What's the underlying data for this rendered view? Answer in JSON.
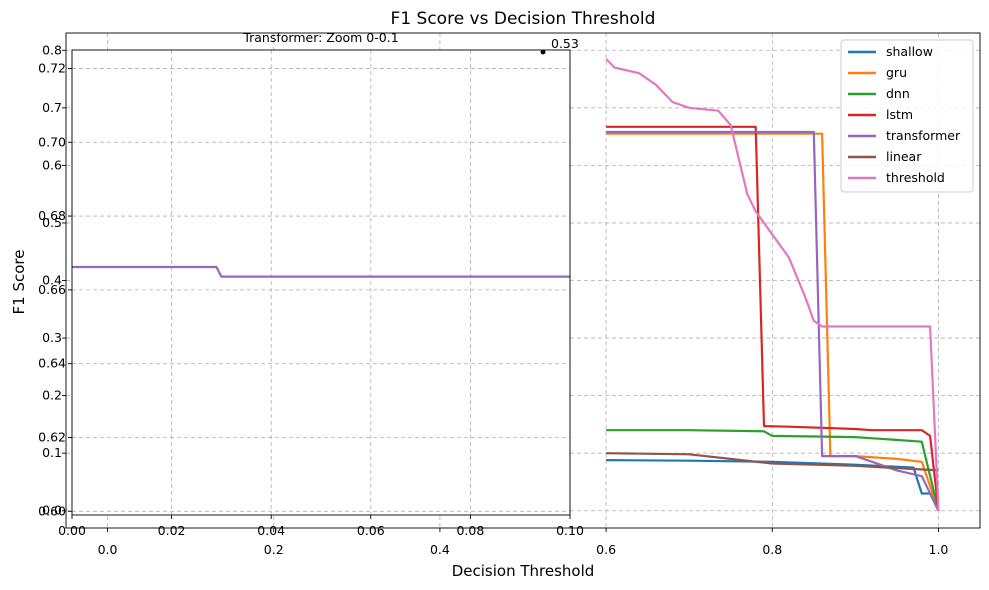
{
  "chart_data": [
    {
      "type": "line",
      "title": "F1 Score vs Decision Threshold",
      "xlabel": "Decision Threshold",
      "ylabel": "F1 Score",
      "xlim": [
        -0.05,
        1.05
      ],
      "ylim": [
        -0.03,
        0.83
      ],
      "xticks": [
        0.0,
        0.2,
        0.4,
        0.6,
        0.8,
        1.0
      ],
      "xtick_labels": [
        "0.0",
        "0.2",
        "0.4",
        "0.6",
        "0.8",
        "1.0"
      ],
      "yticks": [
        0.0,
        0.1,
        0.2,
        0.3,
        0.4,
        0.5,
        0.6,
        0.7,
        0.8
      ],
      "ytick_labels": [
        "0.0",
        "0.1",
        "0.2",
        "0.3",
        "0.4",
        "0.5",
        "0.6",
        "0.7",
        "0.8"
      ],
      "grid": true,
      "legend_position": "upper-right",
      "series": [
        {
          "name": "shallow",
          "color": "#1f77b4",
          "points": [
            [
              0.6,
              0.088
            ],
            [
              0.7,
              0.087
            ],
            [
              0.8,
              0.085
            ],
            [
              0.9,
              0.08
            ],
            [
              0.97,
              0.075
            ],
            [
              0.98,
              0.03
            ],
            [
              0.99,
              0.03
            ],
            [
              1.0,
              0.0
            ]
          ]
        },
        {
          "name": "gru",
          "color": "#ff7f0e",
          "points": [
            [
              0.6,
              0.655
            ],
            [
              0.7,
              0.655
            ],
            [
              0.8,
              0.655
            ],
            [
              0.86,
              0.655
            ],
            [
              0.87,
              0.095
            ],
            [
              0.9,
              0.095
            ],
            [
              0.95,
              0.09
            ],
            [
              0.98,
              0.085
            ],
            [
              1.0,
              0.0
            ]
          ]
        },
        {
          "name": "dnn",
          "color": "#2ca02c",
          "points": [
            [
              0.6,
              0.14
            ],
            [
              0.7,
              0.14
            ],
            [
              0.79,
              0.138
            ],
            [
              0.8,
              0.13
            ],
            [
              0.9,
              0.128
            ],
            [
              0.93,
              0.125
            ],
            [
              0.98,
              0.12
            ],
            [
              1.0,
              0.0
            ]
          ]
        },
        {
          "name": "lstm",
          "color": "#d62728",
          "points": [
            [
              0.6,
              0.667
            ],
            [
              0.7,
              0.667
            ],
            [
              0.78,
              0.667
            ],
            [
              0.79,
              0.147
            ],
            [
              0.82,
              0.146
            ],
            [
              0.9,
              0.142
            ],
            [
              0.92,
              0.14
            ],
            [
              0.98,
              0.14
            ],
            [
              0.99,
              0.13
            ],
            [
              1.0,
              0.0
            ]
          ]
        },
        {
          "name": "transformer",
          "color": "#9467bd",
          "points": [
            [
              0.6,
              0.658
            ],
            [
              0.7,
              0.658
            ],
            [
              0.8,
              0.658
            ],
            [
              0.85,
              0.658
            ],
            [
              0.86,
              0.095
            ],
            [
              0.9,
              0.095
            ],
            [
              0.95,
              0.07
            ],
            [
              0.98,
              0.06
            ],
            [
              1.0,
              0.0
            ]
          ]
        },
        {
          "name": "linear",
          "color": "#8c564b",
          "points": [
            [
              0.6,
              0.1
            ],
            [
              0.7,
              0.098
            ],
            [
              0.8,
              0.082
            ],
            [
              0.9,
              0.078
            ],
            [
              1.0,
              0.07
            ]
          ]
        },
        {
          "name": "threshold",
          "color": "#e377c2",
          "points": [
            [
              0.6,
              0.785
            ],
            [
              0.61,
              0.77
            ],
            [
              0.64,
              0.76
            ],
            [
              0.66,
              0.74
            ],
            [
              0.68,
              0.71
            ],
            [
              0.7,
              0.7
            ],
            [
              0.735,
              0.695
            ],
            [
              0.75,
              0.67
            ],
            [
              0.77,
              0.55
            ],
            [
              0.78,
              0.52
            ],
            [
              0.8,
              0.48
            ],
            [
              0.82,
              0.44
            ],
            [
              0.84,
              0.37
            ],
            [
              0.85,
              0.33
            ],
            [
              0.86,
              0.32
            ],
            [
              0.9,
              0.32
            ],
            [
              0.99,
              0.32
            ],
            [
              1.0,
              0.0
            ]
          ]
        }
      ]
    },
    {
      "type": "line",
      "title": "Transformer: Zoom 0-0.1",
      "xlim": [
        0.0,
        0.1
      ],
      "ylim": [
        0.599,
        0.725
      ],
      "xticks": [
        0.0,
        0.02,
        0.04,
        0.06,
        0.08,
        0.1
      ],
      "xtick_labels": [
        "0.00",
        "0.02",
        "0.04",
        "0.06",
        "0.08",
        "0.10"
      ],
      "yticks": [
        0.6,
        0.62,
        0.64,
        0.66,
        0.68,
        0.7,
        0.72
      ],
      "ytick_labels": [
        "0.60",
        "0.62",
        "0.64",
        "0.66",
        "0.68",
        "0.70",
        "0.72"
      ],
      "grid": true,
      "annotation": "0.53",
      "series": [
        {
          "name": "transformer",
          "color": "#9467bd",
          "points": [
            [
              0.0,
              0.6662
            ],
            [
              0.015,
              0.6662
            ],
            [
              0.029,
              0.6662
            ],
            [
              0.03,
              0.6636
            ],
            [
              0.1,
              0.6636
            ]
          ]
        }
      ]
    }
  ]
}
